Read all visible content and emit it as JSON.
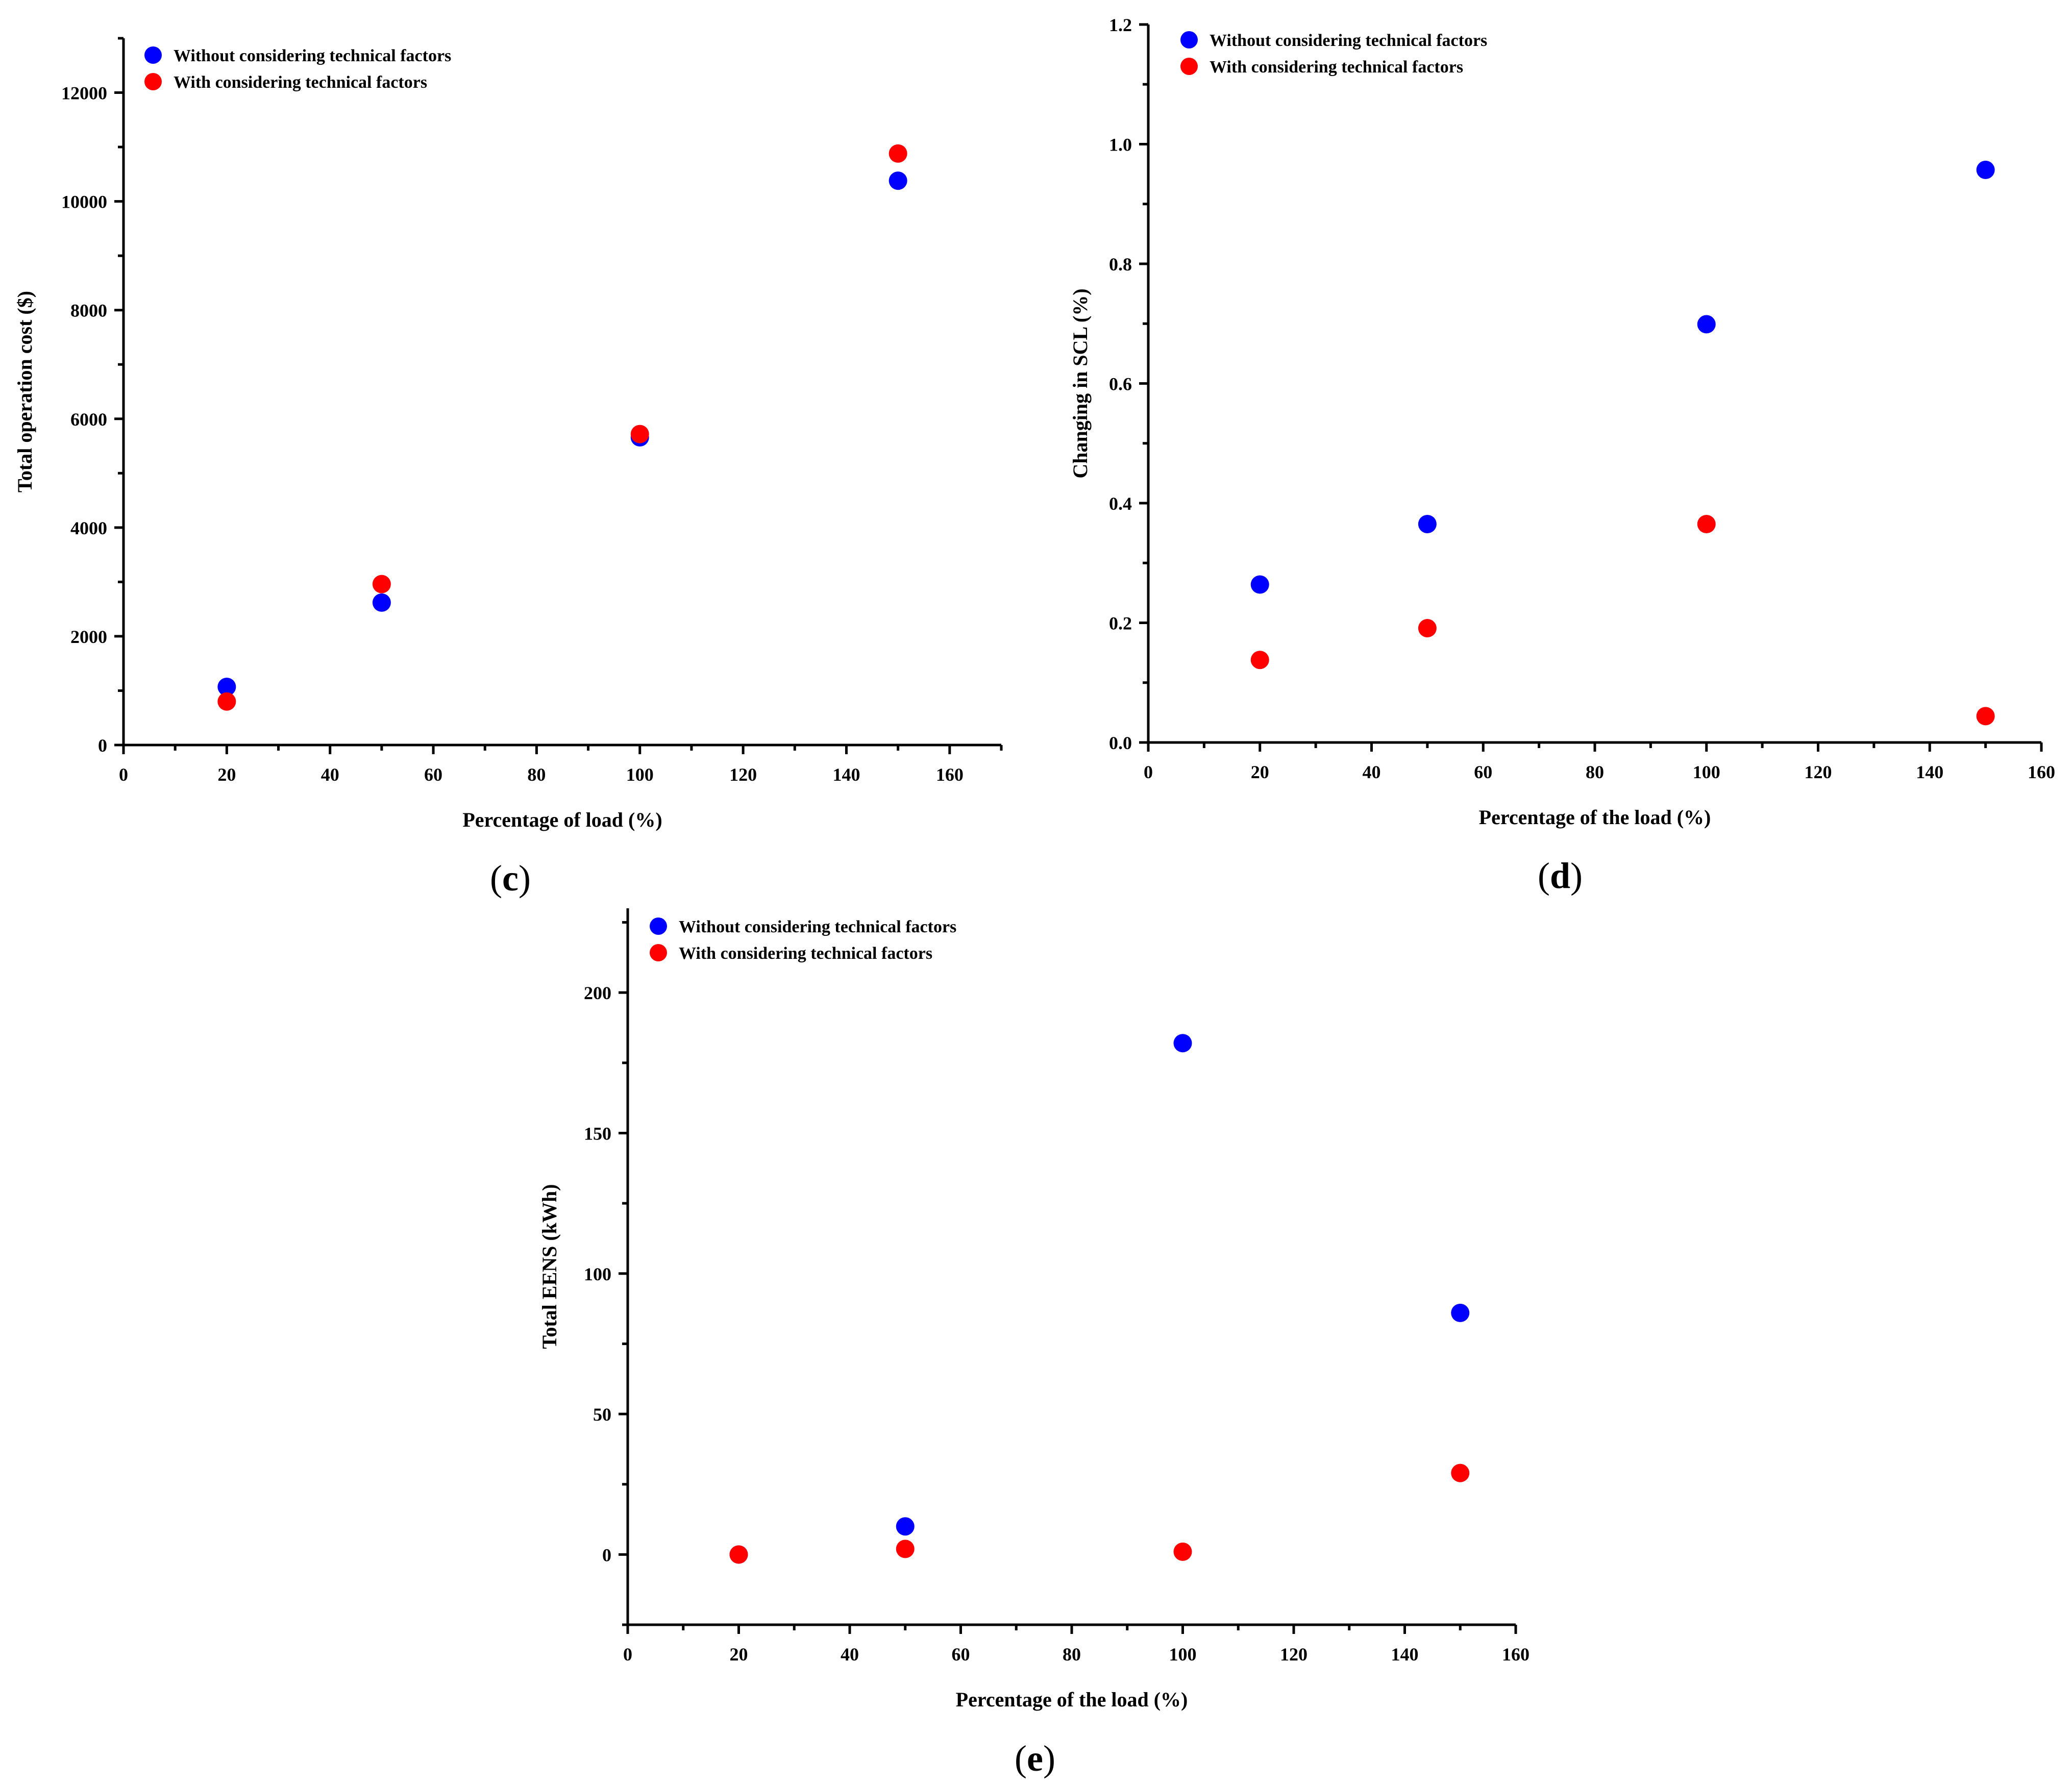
{
  "colors": {
    "without": "#0000ff",
    "with": "#ff0000"
  },
  "chart_data": [
    {
      "id": "c",
      "type": "scatter",
      "caption": "c",
      "xlabel": "Percentage of load (%)",
      "ylabel": "Total operation cost ($)",
      "xlim": [
        0,
        170
      ],
      "ylim": [
        0,
        13000
      ],
      "xticks": [
        0,
        20,
        40,
        60,
        80,
        100,
        120,
        140,
        160
      ],
      "yticks": [
        0,
        2000,
        4000,
        6000,
        8000,
        10000,
        12000
      ],
      "x_minor_step": 10,
      "y_minor_step": 1000,
      "tick_decimals": 0,
      "legend": "top-left",
      "series": [
        {
          "name": "Without considering  technical factors",
          "color_key": "without",
          "x": [
            20,
            50,
            100,
            150
          ],
          "y": [
            1070,
            2620,
            5660,
            10380
          ]
        },
        {
          "name": "With considering  technical factors",
          "color_key": "with",
          "x": [
            20,
            50,
            100,
            150
          ],
          "y": [
            800,
            2960,
            5720,
            10880
          ]
        }
      ]
    },
    {
      "id": "d",
      "type": "scatter",
      "caption": "d",
      "xlabel": "Percentage of the load (%)",
      "ylabel": "Changing in SCL (%)",
      "xlim": [
        0,
        160
      ],
      "ylim": [
        0,
        1.2
      ],
      "xticks": [
        0,
        20,
        40,
        60,
        80,
        100,
        120,
        140,
        160
      ],
      "yticks": [
        0.0,
        0.2,
        0.4,
        0.6,
        0.8,
        1.0,
        1.2
      ],
      "x_minor_step": 10,
      "y_minor_step": 0.1,
      "tick_decimals": 1,
      "legend": "top-left",
      "series": [
        {
          "name": "Without considering  technical factors",
          "color_key": "without",
          "x": [
            20,
            50,
            100,
            150
          ],
          "y": [
            0.264,
            0.365,
            0.699,
            0.957
          ]
        },
        {
          "name": "With considering  technical factors",
          "color_key": "with",
          "x": [
            20,
            50,
            100,
            150
          ],
          "y": [
            0.138,
            0.191,
            0.365,
            0.044
          ]
        }
      ]
    },
    {
      "id": "e",
      "type": "scatter",
      "caption": "e",
      "xlabel": "Percentage of the load (%)",
      "ylabel": "Total EENS (kWh)",
      "xlim": [
        0,
        160
      ],
      "ylim": [
        -25,
        230
      ],
      "xticks": [
        0,
        20,
        40,
        60,
        80,
        100,
        120,
        140,
        160
      ],
      "yticks": [
        0,
        50,
        100,
        150,
        200
      ],
      "x_minor_step": 10,
      "y_minor_step": 25,
      "tick_decimals": 0,
      "legend": "top-left",
      "series": [
        {
          "name": "Without considering  technical factors",
          "color_key": "without",
          "x": [
            20,
            50,
            100,
            150
          ],
          "y": [
            0,
            10,
            182,
            86
          ]
        },
        {
          "name": "With considering  technical factors",
          "color_key": "with",
          "x": [
            20,
            50,
            100,
            150
          ],
          "y": [
            0,
            2,
            1,
            29
          ]
        }
      ]
    }
  ]
}
